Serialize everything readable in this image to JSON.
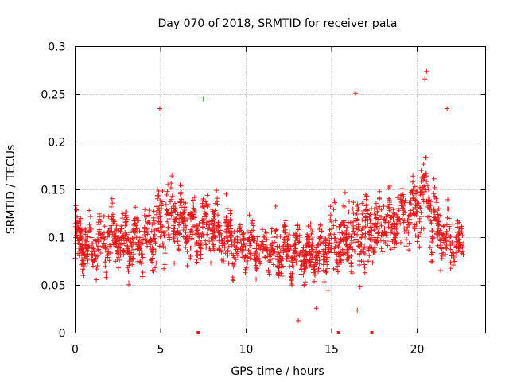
{
  "chart_data": {
    "type": "scatter",
    "title": "Day 070 of 2018, SRMTID for receiver pata",
    "xlabel": "GPS time / hours",
    "ylabel": "SRMTID / TECUs",
    "xlim": [
      0,
      24
    ],
    "ylim": [
      0,
      0.3
    ],
    "xticks": [
      0,
      5,
      10,
      15,
      20
    ],
    "xtick_labels": [
      "0",
      "5",
      "10",
      "15",
      "20"
    ],
    "yticks": [
      0,
      0.05,
      0.1,
      0.15,
      0.2,
      0.25,
      0.3
    ],
    "ytick_labels": [
      "0",
      "0.05",
      "0.1",
      "0.15",
      "0.2",
      "0.25",
      "0.3"
    ],
    "grid": true,
    "marker": "+",
    "color": "#e41a1c",
    "x_range_of_data": [
      0,
      22.7
    ],
    "notable_points": [
      {
        "x": 7.5,
        "y": 0.245
      },
      {
        "x": 4.95,
        "y": 0.235
      },
      {
        "x": 16.4,
        "y": 0.251
      },
      {
        "x": 20.55,
        "y": 0.274
      },
      {
        "x": 20.45,
        "y": 0.266
      },
      {
        "x": 21.75,
        "y": 0.235
      },
      {
        "x": 13.05,
        "y": 0.013
      },
      {
        "x": 14.1,
        "y": 0.026
      },
      {
        "x": 16.5,
        "y": 0.024
      }
    ],
    "zero_value_times": [
      7.2,
      15.4,
      17.35
    ],
    "trend": {
      "x": [
        0,
        1,
        2,
        3,
        4,
        5,
        6,
        7,
        8,
        9,
        10,
        11,
        12,
        13,
        14,
        15,
        16,
        17,
        18,
        19,
        20,
        20.5,
        21,
        21.5,
        22,
        22.7
      ],
      "median": [
        0.095,
        0.09,
        0.1,
        0.095,
        0.095,
        0.115,
        0.12,
        0.105,
        0.11,
        0.1,
        0.09,
        0.088,
        0.087,
        0.085,
        0.08,
        0.095,
        0.1,
        0.105,
        0.11,
        0.12,
        0.13,
        0.15,
        0.115,
        0.1,
        0.095,
        0.09
      ],
      "spread": [
        0.025,
        0.025,
        0.03,
        0.03,
        0.03,
        0.04,
        0.035,
        0.03,
        0.035,
        0.03,
        0.025,
        0.025,
        0.025,
        0.025,
        0.025,
        0.035,
        0.04,
        0.04,
        0.035,
        0.035,
        0.04,
        0.05,
        0.035,
        0.025,
        0.025,
        0.02
      ]
    }
  }
}
